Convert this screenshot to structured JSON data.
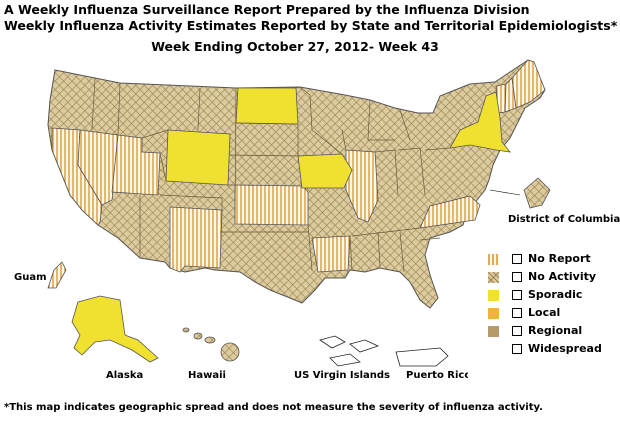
{
  "header": {
    "title_line1": "A Weekly Influenza Surveillance Report Prepared by the Influenza Division",
    "title_line2": "Weekly Influenza Activity Estimates Reported by State and Territorial Epidemiologists*",
    "subtitle": "Week Ending October 27, 2012- Week 43"
  },
  "map_labels": {
    "dc": "District of Columbia",
    "guam": "Guam",
    "alaska": "Alaska",
    "hawaii": "Hawaii",
    "usvi": "US Virgin Islands",
    "pr": "Puerto Rico"
  },
  "legend": {
    "items": [
      {
        "label": "No Report",
        "color": "#d9a84e"
      },
      {
        "label": "No Activity",
        "color": "#b9a57a"
      },
      {
        "label": "Sporadic",
        "color": "#f0e030"
      },
      {
        "label": "Local",
        "color": "#f2b33a"
      },
      {
        "label": "Regional",
        "color": "#b59a6a"
      },
      {
        "label": "Widespread",
        "color": "#8a6b3a"
      }
    ]
  },
  "colors": {
    "no_activity_fill": "#d8c79b",
    "no_report_stripe": "#d89a3a",
    "sporadic": "#f0e030",
    "border": "#555555"
  },
  "activity": {
    "sporadic": [
      "Wyoming",
      "North Dakota",
      "Iowa",
      "New York",
      "Alaska"
    ],
    "no_report": [
      "California",
      "Nevada",
      "Utah",
      "New Mexico",
      "Kansas",
      "Illinois",
      "Arkansas",
      "Virginia",
      "Vermont",
      "New Hampshire",
      "Maine",
      "Guam"
    ]
  },
  "footnote": "*This map indicates geographic spread and does not measure the severity of influenza activity."
}
